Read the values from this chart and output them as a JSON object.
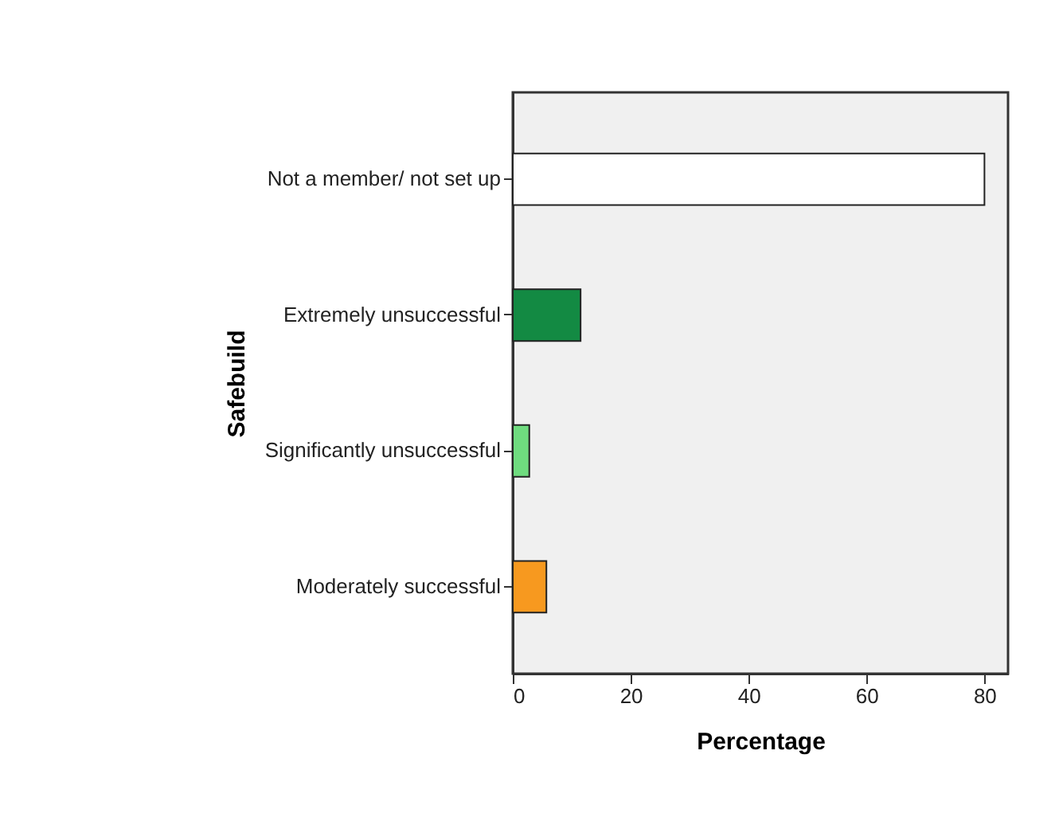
{
  "chart_data": {
    "type": "bar",
    "orientation": "horizontal",
    "ylabel": "Safebuild",
    "xlabel": "Percentage",
    "categories": [
      "Not a member/ not set up",
      "Extremely unsuccessful",
      "Significantly unsuccessful",
      "Moderately successful"
    ],
    "values": [
      80,
      11.5,
      2.8,
      5.7
    ],
    "colors": [
      "#ffffff",
      "#138a43",
      "#6fdc7f",
      "#f7991f"
    ],
    "xlim": [
      0,
      84
    ],
    "xticks": [
      0,
      20,
      40,
      60,
      80
    ],
    "grid": false
  }
}
